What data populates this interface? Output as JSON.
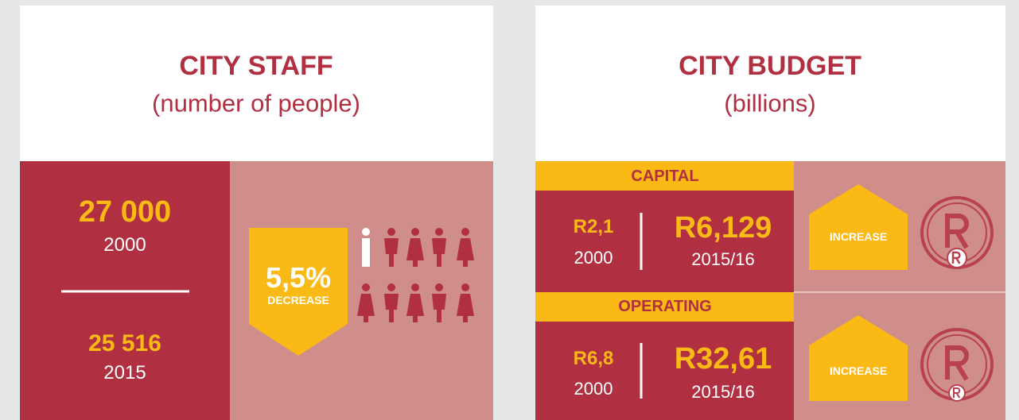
{
  "staff": {
    "title": "CITY STAFF",
    "subtitle": "(number of people)",
    "before": {
      "value": "27 000",
      "year": "2000"
    },
    "after": {
      "value": "25 516",
      "year": "2015"
    },
    "change": {
      "value": "5,5%",
      "label": "DECREASE"
    }
  },
  "budget": {
    "title": "CITY BUDGET",
    "subtitle": "(billions)",
    "sections": [
      {
        "name": "CAPITAL",
        "before": {
          "value": "R2,1",
          "year": "2000"
        },
        "after": {
          "value": "R6,129",
          "year": "2015/16"
        },
        "change": "INCREASE"
      },
      {
        "name": "OPERATING",
        "before": {
          "value": "R6,8",
          "year": "2000"
        },
        "after": {
          "value": "R32,61",
          "year": "2015/16"
        },
        "change": "INCREASE"
      }
    ]
  }
}
